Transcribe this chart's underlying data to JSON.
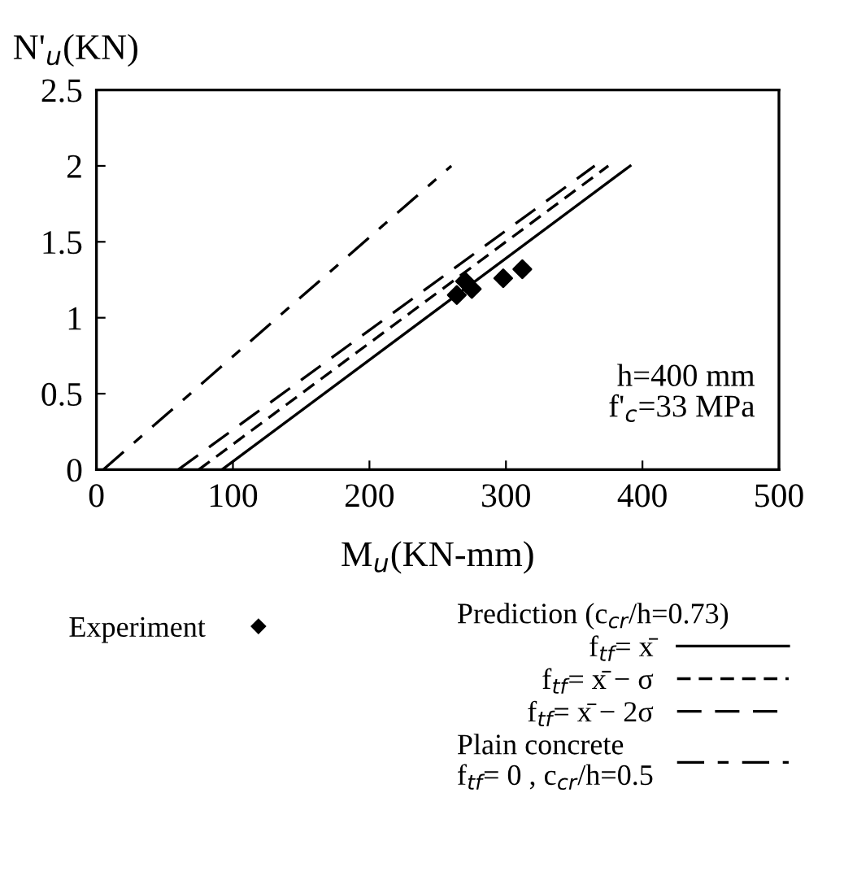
{
  "chart_data": {
    "type": "line",
    "xlabel": "M$_{u}$(KN-mm)",
    "ylabel": "N'$_{u}$(KN)",
    "xlim": [
      0,
      500
    ],
    "xticks": [
      0,
      100,
      200,
      300,
      400,
      500
    ],
    "ylim": [
      0,
      2.5
    ],
    "yticks": [
      0,
      0.5,
      1,
      1.5,
      2,
      2.5
    ],
    "grid": false,
    "legend": "bottom",
    "legend_title": "Prediction (c$_{cr}$/h=0.73)",
    "annotations": [
      "h=400 mm\nf'$_{c}$=33 MPa"
    ],
    "series": [
      {
        "name": "Experiment",
        "type": "scatter",
        "marker": "diamond",
        "color": "#000000",
        "x": [
          264,
          270,
          275,
          298,
          312
        ],
        "values": [
          1.15,
          1.24,
          1.19,
          1.26,
          1.32
        ]
      },
      {
        "name": "f$_{tf}$= x̄",
        "line_style": "solid",
        "color": "#000000",
        "x": [
          92,
          391
        ],
        "values": [
          0,
          2
        ]
      },
      {
        "name": "f$_{tf}$= x̄ − σ",
        "line_style": "dashed",
        "color": "#000000",
        "x": [
          75,
          375
        ],
        "values": [
          0,
          2
        ]
      },
      {
        "name": "f$_{tf}$= x̄ − 2σ",
        "line_style": "long dashed",
        "color": "#000000",
        "x": [
          60,
          365
        ],
        "values": [
          0,
          2
        ]
      },
      {
        "name": "Plain concrete\nf$_{tf}$= 0 , c$_{cr}$/h=0.5",
        "line_style": "dash-dot",
        "color": "#000000",
        "x": [
          5,
          260
        ],
        "values": [
          0,
          2
        ]
      }
    ]
  }
}
